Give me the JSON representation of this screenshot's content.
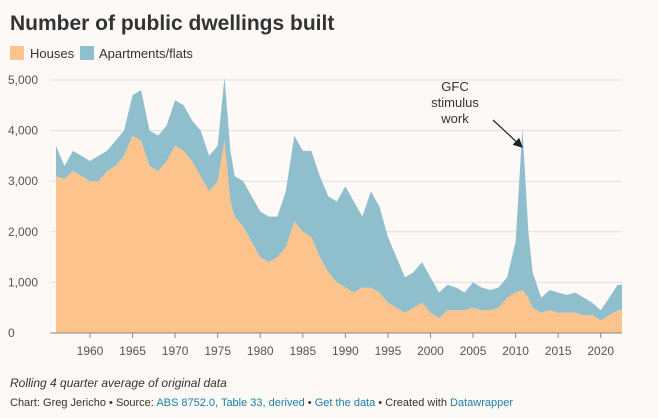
{
  "chart_data": {
    "type": "stacked-area",
    "title": "Number of public dwellings built",
    "x": [
      1956,
      1957,
      1958,
      1959,
      1960,
      1961,
      1962,
      1963,
      1964,
      1965,
      1966,
      1967,
      1968,
      1969,
      1970,
      1971,
      1972,
      1973,
      1974,
      1975,
      1975.8,
      1976.5,
      1977,
      1978,
      1979,
      1980,
      1981,
      1982,
      1983,
      1984,
      1985,
      1986,
      1987,
      1988,
      1989,
      1990,
      1991,
      1992,
      1993,
      1994,
      1995,
      1996,
      1997,
      1998,
      1999,
      2000,
      2001,
      2002,
      2003,
      2004,
      2005,
      2006,
      2007,
      2008,
      2009,
      2010,
      2010.8,
      2011.5,
      2012,
      2013,
      2014,
      2015,
      2016,
      2017,
      2018,
      2019,
      2020,
      2021,
      2022,
      2022.5
    ],
    "series": [
      {
        "name": "Houses",
        "color": "#fdc38d",
        "values": [
          3100,
          3050,
          3200,
          3100,
          3000,
          3000,
          3200,
          3300,
          3500,
          3900,
          3800,
          3300,
          3200,
          3400,
          3700,
          3600,
          3400,
          3100,
          2800,
          3000,
          3800,
          2600,
          2300,
          2100,
          1800,
          1500,
          1400,
          1500,
          1700,
          2200,
          2000,
          1900,
          1500,
          1200,
          1000,
          900,
          800,
          900,
          900,
          800,
          600,
          500,
          400,
          500,
          600,
          400,
          300,
          450,
          450,
          450,
          500,
          450,
          450,
          500,
          700,
          800,
          850,
          700,
          500,
          400,
          450,
          400,
          400,
          400,
          350,
          350,
          250,
          350,
          450,
          450
        ]
      },
      {
        "name": "Apartments/flats",
        "color": "#8fbfcd",
        "values": [
          600,
          250,
          400,
          400,
          400,
          500,
          400,
          500,
          500,
          800,
          1000,
          700,
          700,
          700,
          900,
          900,
          800,
          900,
          700,
          700,
          1250,
          1000,
          800,
          900,
          900,
          900,
          900,
          800,
          1100,
          1700,
          1600,
          1700,
          1600,
          1500,
          1600,
          2000,
          1800,
          1400,
          1900,
          1700,
          1300,
          1000,
          700,
          700,
          800,
          700,
          500,
          500,
          450,
          350,
          500,
          450,
          400,
          400,
          400,
          1000,
          3200,
          1300,
          700,
          300,
          400,
          400,
          350,
          400,
          350,
          250,
          200,
          350,
          500,
          500
        ]
      }
    ],
    "xlim": [
      1955.3,
      2022.5
    ],
    "xticks": [
      1960,
      1965,
      1970,
      1975,
      1980,
      1985,
      1990,
      1995,
      2000,
      2005,
      2010,
      2015,
      2020
    ],
    "ylim": [
      0,
      5000
    ],
    "yticks": [
      0,
      {
        "value": 1000,
        "label": "1,000"
      },
      {
        "value": 2000,
        "label": "2,000"
      },
      {
        "value": 3000,
        "label": "3,000"
      },
      {
        "value": 4000,
        "label": "4,000"
      },
      {
        "value": 5000,
        "label": "5,000"
      }
    ],
    "grid": true,
    "annotation": [
      "GFC",
      "stimulus",
      "work"
    ],
    "notes": "Rolling 4 quarter average of original data",
    "credit": [
      "Chart: Greg Jericho • Source: ",
      "ABS 8752.0, Table 33, derived",
      " • ",
      "Get the data",
      " • Created with ",
      "Datawrapper"
    ]
  }
}
